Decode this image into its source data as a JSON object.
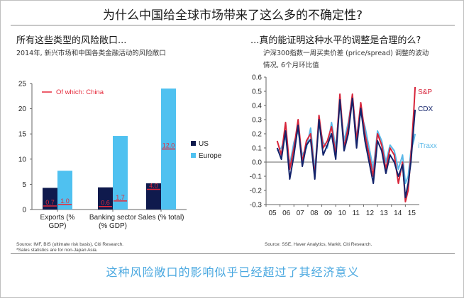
{
  "main_title": "为什么中国给全球市场带来了这么多的不确定性?",
  "footer": "这种风险敞口的影响似乎已经超过了其经济意义",
  "left": {
    "title": "所有这些类型的风险敞口...",
    "subtitle": "2014年, 新兴市场和中国各类金融活动的风险敞口",
    "source": [
      "Source: IMF, BIS (ultimate risk basis), Citi Research.",
      "*Sales statistics are for non-Japan Asia."
    ]
  },
  "right": {
    "title": "...真的能证明这种水平的调整是合理的么?",
    "subtitle": [
      "沪深300指数一周买卖价差 (price/spread) 调整的波动",
      "情况, 6个月环比值"
    ],
    "source": [
      "Source: SSE, Haver Analytics, Markit, Citi Research."
    ]
  },
  "colors": {
    "us": "#0f1a4d",
    "europe": "#4fc1f0",
    "china": "#e5293a",
    "sp": "#d7243a",
    "cdx": "#13236b",
    "itraxx": "#5ab8e8",
    "axis": "#666666"
  },
  "chart_data": [
    {
      "type": "bar",
      "title": "",
      "categories": [
        "Exports (% GDP)",
        "Banking sector (% GDP)",
        "Sales (% total)"
      ],
      "category_lines": [
        [
          "Exports (%",
          "GDP)"
        ],
        [
          "Banking sector",
          "(% GDP)"
        ],
        [
          "Sales (% total)"
        ]
      ],
      "series": [
        {
          "name": "US",
          "values": [
            4.3,
            4.4,
            5.2
          ]
        },
        {
          "name": "Europe",
          "values": [
            7.7,
            14.6,
            24.0
          ]
        }
      ],
      "china_labels": [
        "0.7",
        "1.0",
        "0.6",
        "1.7",
        "4.0",
        "12.0"
      ],
      "china": {
        "name": "Of which: China",
        "us": [
          0.7,
          0.6,
          4.0
        ],
        "europe": [
          1.0,
          1.7,
          12.0
        ]
      },
      "ylim": [
        0,
        25
      ],
      "yticks": [
        0,
        5,
        10,
        15,
        20,
        25
      ],
      "legend_position": "right"
    },
    {
      "type": "line",
      "title": "",
      "xlim": [
        2005,
        2016
      ],
      "ylim": [
        -0.3,
        0.6
      ],
      "xticks": [
        "05",
        "06",
        "07",
        "08",
        "09",
        "10",
        "11",
        "12",
        "13",
        "14",
        "15"
      ],
      "yticks": [
        "0.6",
        "0.5",
        "0.4",
        "0.3",
        "0.2",
        "0.1",
        "0.0",
        "-0.1",
        "-0.2",
        "-0.3"
      ],
      "series": [
        {
          "name": "S&P",
          "x": [
            2005.8,
            2006.1,
            2006.4,
            2006.7,
            2007.0,
            2007.3,
            2007.6,
            2007.9,
            2008.2,
            2008.5,
            2008.8,
            2009.1,
            2009.4,
            2009.7,
            2010.0,
            2010.3,
            2010.6,
            2010.9,
            2011.2,
            2011.5,
            2011.8,
            2012.1,
            2012.4,
            2012.7,
            2013.0,
            2013.3,
            2013.6,
            2013.9,
            2014.2,
            2014.5,
            2014.8,
            2015.0,
            2015.2,
            2015.4,
            2015.6,
            2015.7
          ],
          "y": [
            0.15,
            0.05,
            0.28,
            -0.05,
            0.1,
            0.3,
            0.0,
            0.15,
            0.2,
            -0.1,
            0.33,
            0.1,
            0.15,
            0.25,
            0.05,
            0.48,
            0.1,
            0.25,
            0.48,
            0.15,
            0.42,
            0.2,
            0.05,
            -0.1,
            0.2,
            0.12,
            -0.05,
            0.1,
            0.05,
            -0.15,
            0.0,
            -0.28,
            -0.2,
            0.05,
            0.35,
            0.53
          ]
        },
        {
          "name": "CDX",
          "x": [
            2005.8,
            2006.1,
            2006.4,
            2006.7,
            2007.0,
            2007.3,
            2007.6,
            2007.9,
            2008.2,
            2008.5,
            2008.8,
            2009.1,
            2009.4,
            2009.7,
            2010.0,
            2010.3,
            2010.6,
            2010.9,
            2011.2,
            2011.5,
            2011.8,
            2012.1,
            2012.4,
            2012.7,
            2013.0,
            2013.3,
            2013.6,
            2013.9,
            2014.2,
            2014.5,
            2014.8,
            2015.0,
            2015.2,
            2015.4,
            2015.6,
            2015.7
          ],
          "y": [
            0.1,
            0.02,
            0.22,
            -0.12,
            0.05,
            0.26,
            -0.03,
            0.12,
            0.16,
            -0.12,
            0.3,
            0.05,
            0.12,
            0.2,
            0.02,
            0.44,
            0.08,
            0.2,
            0.45,
            0.1,
            0.38,
            0.15,
            0.0,
            -0.15,
            0.15,
            0.08,
            -0.08,
            0.05,
            0.0,
            -0.1,
            -0.02,
            -0.25,
            -0.15,
            0.0,
            0.25,
            0.37
          ]
        },
        {
          "name": "iTraxx",
          "x": [
            2005.8,
            2006.1,
            2006.4,
            2006.7,
            2007.0,
            2007.3,
            2007.6,
            2007.9,
            2008.2,
            2008.5,
            2008.8,
            2009.1,
            2009.4,
            2009.7,
            2010.0,
            2010.3,
            2010.6,
            2010.9,
            2011.2,
            2011.5,
            2011.8,
            2012.1,
            2012.4,
            2012.7,
            2013.0,
            2013.3,
            2013.6,
            2013.9,
            2014.2,
            2014.5,
            2014.8,
            2015.0,
            2015.2,
            2015.4,
            2015.6,
            2015.7
          ],
          "y": [
            0.08,
            0.1,
            0.18,
            -0.02,
            0.14,
            0.22,
            0.05,
            0.1,
            0.24,
            -0.05,
            0.28,
            0.14,
            0.1,
            0.28,
            0.1,
            0.42,
            0.15,
            0.28,
            0.46,
            0.18,
            0.35,
            0.25,
            0.1,
            -0.05,
            0.22,
            0.15,
            0.0,
            0.12,
            0.08,
            -0.05,
            0.05,
            -0.15,
            -0.1,
            0.08,
            0.15,
            0.2
          ]
        }
      ]
    }
  ]
}
